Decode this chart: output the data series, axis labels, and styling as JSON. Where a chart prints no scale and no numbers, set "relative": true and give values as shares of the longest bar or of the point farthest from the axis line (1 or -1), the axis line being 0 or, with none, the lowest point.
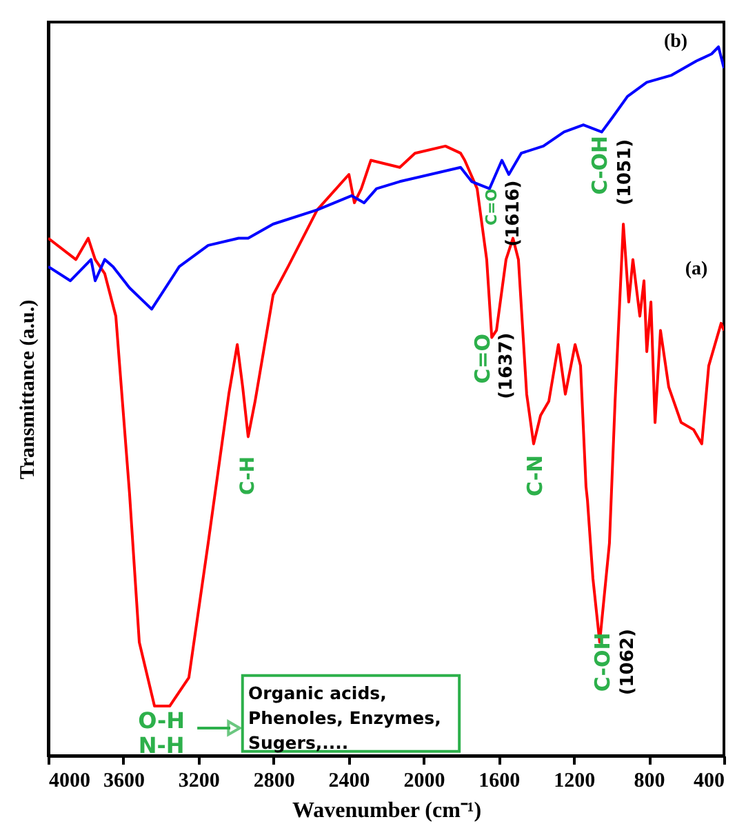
{
  "chart_data": {
    "type": "line",
    "relative": true,
    "xlabel": "Wavenumber (cm⁻¹)",
    "ylabel": "Transmittance (a.u.)",
    "xlim": [
      4000,
      400
    ],
    "xticks": [
      4000,
      3600,
      3200,
      2800,
      2400,
      2000,
      1600,
      1200,
      800,
      400
    ],
    "series": [
      {
        "name": "(a)",
        "color": "#ff0000",
        "x": [
          4000,
          3853,
          3787,
          3750,
          3699,
          3640,
          3567,
          3515,
          3434,
          3353,
          3251,
          3148,
          3038,
          2993,
          2964,
          2935,
          2898,
          2802,
          2722,
          2567,
          2398,
          2369,
          2332,
          2281,
          2127,
          2046,
          1884,
          1803,
          1781,
          1715,
          1664,
          1637,
          1612,
          1561,
          1524,
          1495,
          1451,
          1414,
          1377,
          1333,
          1282,
          1245,
          1193,
          1164,
          1135,
          1127,
          1098,
          1062,
          1010,
          980,
          936,
          907,
          885,
          848,
          826,
          811,
          789,
          767,
          738,
          694,
          628,
          562,
          518,
          481,
          415,
          400
        ],
        "values": [
          0.73,
          0.7,
          0.73,
          0.7,
          0.68,
          0.62,
          0.37,
          0.16,
          0.07,
          0.07,
          0.11,
          0.3,
          0.51,
          0.58,
          0.52,
          0.45,
          0.5,
          0.65,
          0.69,
          0.77,
          0.82,
          0.78,
          0.8,
          0.84,
          0.83,
          0.85,
          0.86,
          0.85,
          0.84,
          0.8,
          0.7,
          0.59,
          0.6,
          0.7,
          0.73,
          0.7,
          0.51,
          0.44,
          0.48,
          0.5,
          0.58,
          0.51,
          0.58,
          0.55,
          0.38,
          0.36,
          0.25,
          0.16,
          0.3,
          0.5,
          0.75,
          0.64,
          0.7,
          0.62,
          0.67,
          0.57,
          0.64,
          0.47,
          0.6,
          0.52,
          0.47,
          0.46,
          0.44,
          0.55,
          0.61,
          0.6
        ]
      },
      {
        "name": "(b)",
        "color": "#0000ff",
        "x": [
          4000,
          3882,
          3772,
          3750,
          3699,
          3655,
          3567,
          3449,
          3302,
          3148,
          2986,
          2935,
          2802,
          2567,
          2384,
          2317,
          2251,
          2127,
          1803,
          1744,
          1649,
          1583,
          1546,
          1480,
          1362,
          1252,
          1149,
          1051,
          995,
          914,
          811,
          679,
          547,
          466,
          429,
          400
        ],
        "values": [
          0.69,
          0.67,
          0.7,
          0.67,
          0.7,
          0.69,
          0.66,
          0.63,
          0.69,
          0.72,
          0.73,
          0.73,
          0.75,
          0.77,
          0.79,
          0.78,
          0.8,
          0.81,
          0.83,
          0.81,
          0.8,
          0.84,
          0.82,
          0.85,
          0.86,
          0.88,
          0.89,
          0.88,
          0.9,
          0.93,
          0.95,
          0.96,
          0.98,
          0.99,
          1.0,
          0.97
        ]
      }
    ],
    "annotations": [
      "O-H",
      "N-H",
      "C-H",
      "C=O",
      "(1637)",
      "C-N",
      "C-OH",
      "(1062)",
      "C=O",
      "(1616)",
      "C-OH",
      "(1051)",
      "Organic acids,\nPhenoles, Enzymes,\nSugers,...."
    ]
  }
}
